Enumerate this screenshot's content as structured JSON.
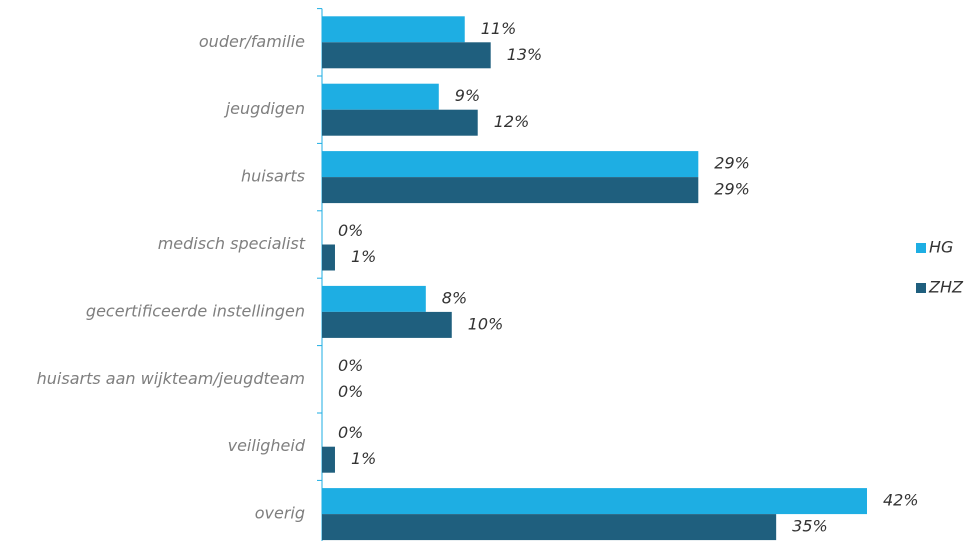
{
  "chart_data": {
    "type": "barh",
    "categories": [
      "ouder/familie",
      "jeugdigen",
      "huisarts",
      "medisch specialist",
      "gecertificeerde instellingen",
      "huisarts aan wijkteam/jeugdteam",
      "veiligheid",
      "overig"
    ],
    "series": [
      {
        "name": "HG",
        "color": "#1eaee3",
        "values": [
          11,
          9,
          29,
          0,
          8,
          0,
          0,
          42
        ],
        "value_labels": [
          "11%",
          "9%",
          "29%",
          "0%",
          "8%",
          "0%",
          "0%",
          "42%"
        ]
      },
      {
        "name": "ZHZ",
        "color": "#1f5f7e",
        "values": [
          13,
          12,
          29,
          1,
          10,
          0,
          1,
          35
        ],
        "value_labels": [
          "13%",
          "12%",
          "29%",
          "1%",
          "10%",
          "0%",
          "1%",
          "35%"
        ]
      }
    ],
    "legend": "right"
  }
}
